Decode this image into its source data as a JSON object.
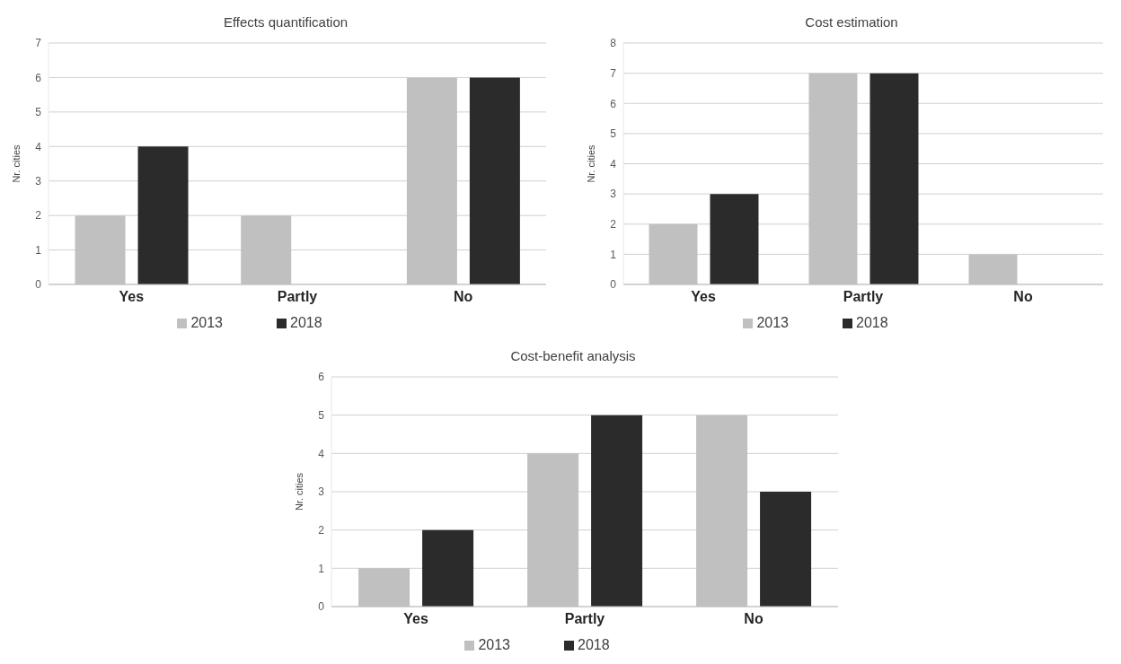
{
  "chart_data": [
    {
      "type": "bar",
      "title": "Effects quantification",
      "ylabel": "Nr. cities",
      "categories": [
        "Yes",
        "Partly",
        "No"
      ],
      "series": [
        {
          "name": "2013",
          "color": "#c0c0c0",
          "values": [
            2,
            2,
            6
          ]
        },
        {
          "name": "2018",
          "color": "#2b2b2b",
          "values": [
            4,
            0,
            6
          ]
        }
      ],
      "ylim": [
        0,
        7
      ],
      "yticks": [
        0,
        1,
        2,
        3,
        4,
        5,
        6,
        7
      ],
      "grid": "y",
      "legend": "bottom"
    },
    {
      "type": "bar",
      "title": "Cost estimation",
      "ylabel": "Nr. cities",
      "categories": [
        "Yes",
        "Partly",
        "No"
      ],
      "series": [
        {
          "name": "2013",
          "color": "#c0c0c0",
          "values": [
            2,
            7,
            1
          ]
        },
        {
          "name": "2018",
          "color": "#2b2b2b",
          "values": [
            3,
            7,
            0
          ]
        }
      ],
      "ylim": [
        0,
        8
      ],
      "yticks": [
        0,
        1,
        2,
        3,
        4,
        5,
        6,
        7,
        8
      ],
      "grid": "y",
      "legend": "bottom"
    },
    {
      "type": "bar",
      "title": "Cost-benefit analysis",
      "ylabel": "Nr. cities",
      "categories": [
        "Yes",
        "Partly",
        "No"
      ],
      "series": [
        {
          "name": "2013",
          "color": "#c0c0c0",
          "values": [
            1,
            4,
            5
          ]
        },
        {
          "name": "2018",
          "color": "#2b2b2b",
          "values": [
            2,
            5,
            3
          ]
        }
      ],
      "ylim": [
        0,
        6
      ],
      "yticks": [
        0,
        1,
        2,
        3,
        4,
        5,
        6
      ],
      "grid": "y",
      "legend": "bottom"
    }
  ]
}
